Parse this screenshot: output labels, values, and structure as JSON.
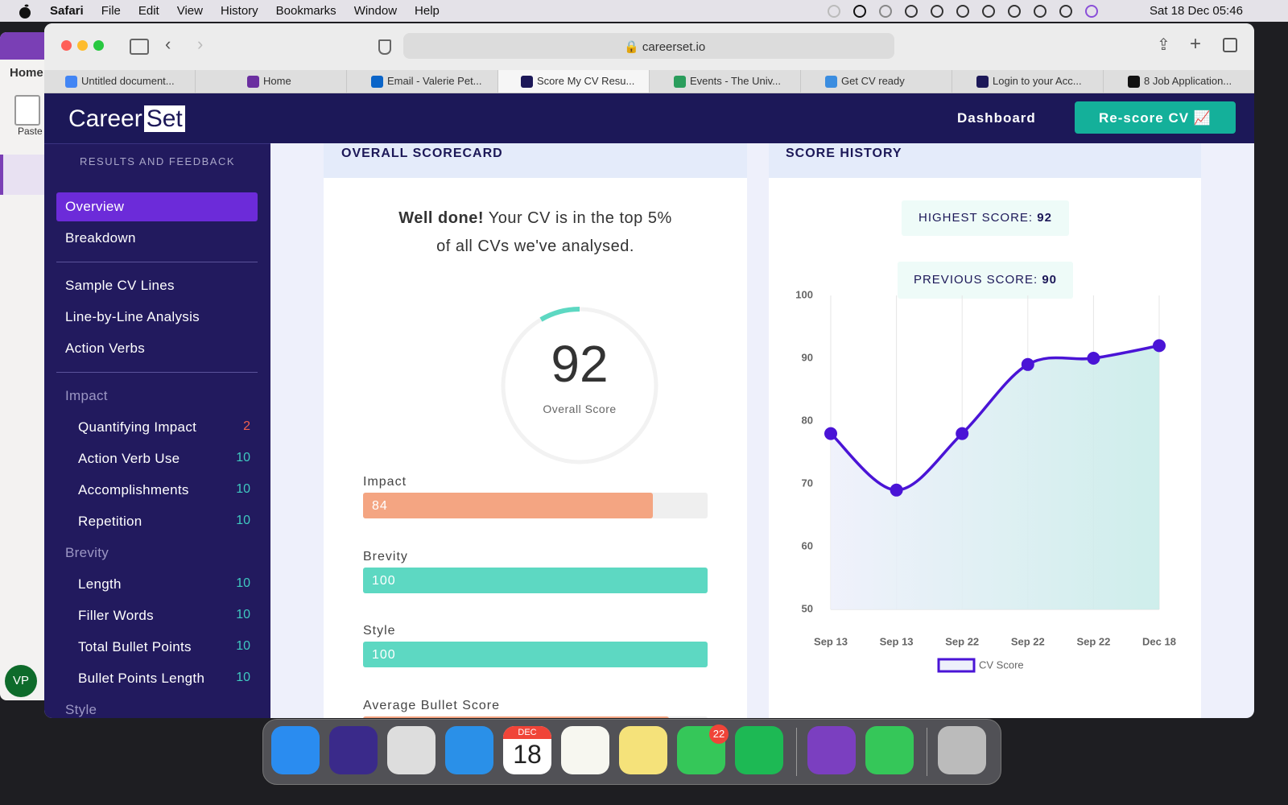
{
  "menubar": {
    "app": "Safari",
    "menus": [
      "File",
      "Edit",
      "View",
      "History",
      "Bookmarks",
      "Window",
      "Help"
    ],
    "clock": "Sat 18 Dec 05:46"
  },
  "browser": {
    "url": "careerset.io",
    "tabs": [
      "Untitled document...",
      "Home",
      "Email - Valerie Pet...",
      "Score My CV Resu...",
      "Events - The Univ...",
      "Get CV ready",
      "Login to your Acc...",
      "8 Job Application..."
    ]
  },
  "side_app": {
    "tab": "Home",
    "paste": "Paste",
    "avatar": "VP"
  },
  "site": {
    "logo": [
      "Career",
      "Set"
    ],
    "nav": "Dashboard",
    "button": "Re-score CV"
  },
  "sidebar": {
    "heading": "RESULTS AND FEEDBACK",
    "links": [
      "Overview",
      "Breakdown"
    ],
    "tools": [
      "Sample CV Lines",
      "Line-by-Line Analysis",
      "Action Verbs"
    ],
    "groups": [
      {
        "name": "Impact",
        "items": [
          {
            "label": "Quantifying Impact",
            "score": 2
          },
          {
            "label": "Action Verb Use",
            "score": 10
          },
          {
            "label": "Accomplishments",
            "score": 10
          },
          {
            "label": "Repetition",
            "score": 10
          }
        ]
      },
      {
        "name": "Brevity",
        "items": [
          {
            "label": "Length",
            "score": 10
          },
          {
            "label": "Filler Words",
            "score": 10
          },
          {
            "label": "Total Bullet Points",
            "score": 10
          },
          {
            "label": "Bullet Points Length",
            "score": 10
          }
        ]
      },
      {
        "name": "Style",
        "items": []
      }
    ]
  },
  "scorecard": {
    "title": "OVERALL SCORECARD",
    "message": {
      "bold": "Well done!",
      "line1": "Your CV is in the top 5%",
      "line2": "of all CVs we've analysed."
    },
    "score": 92,
    "score_label": "Overall Score",
    "bars": [
      {
        "label": "Impact",
        "value": 84,
        "color": "#f4a582"
      },
      {
        "label": "Brevity",
        "value": 100,
        "color": "#5dd8c2"
      },
      {
        "label": "Style",
        "value": 100,
        "color": "#5dd8c2"
      },
      {
        "label": "Average Bullet Score",
        "color": "#f4a582"
      }
    ]
  },
  "history": {
    "title": "SCORE HISTORY",
    "highest": {
      "label": "HIGHEST SCORE:",
      "value": 92
    },
    "previous": {
      "label": "PREVIOUS SCORE:",
      "value": 90
    },
    "chart_data": {
      "type": "line",
      "categories": [
        "Sep 13",
        "Sep 13",
        "Sep 22",
        "Sep 22",
        "Sep 22",
        "Dec 18"
      ],
      "series": [
        {
          "name": "CV Score",
          "color": "#4a14d6",
          "values": [
            78,
            69,
            78,
            89,
            90,
            92
          ]
        }
      ],
      "ylim": [
        50,
        100
      ],
      "yticks": [
        50,
        60,
        70,
        80,
        90,
        100
      ]
    }
  },
  "dock": {
    "calendar_month": "DEC",
    "calendar_day": 18,
    "messages_badge": 22
  }
}
